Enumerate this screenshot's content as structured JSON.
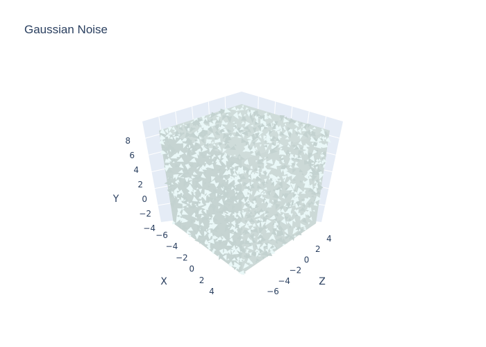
{
  "chart_data": {
    "type": "3d-scatter-surface",
    "title": "Gaussian Noise",
    "axes": {
      "x": {
        "title": "X",
        "range": [
          -7,
          6
        ],
        "ticks": [
          "−6",
          "−4",
          "−2",
          "0",
          "2",
          "4"
        ]
      },
      "y": {
        "title": "Y",
        "range": [
          -4,
          9
        ],
        "ticks": [
          "−4",
          "−2",
          "0",
          "2",
          "4",
          "6",
          "8"
        ]
      },
      "z": {
        "title": "Z",
        "range": [
          -7,
          6
        ],
        "ticks": [
          "−6",
          "−4",
          "−2",
          "0",
          "2",
          "4"
        ]
      }
    },
    "mark_color": "#c3d2d0",
    "mark_highlight": "#eaf8f8",
    "scene_bg": "#e5ecf6",
    "grid_color": "#ffffff",
    "grid": true
  }
}
